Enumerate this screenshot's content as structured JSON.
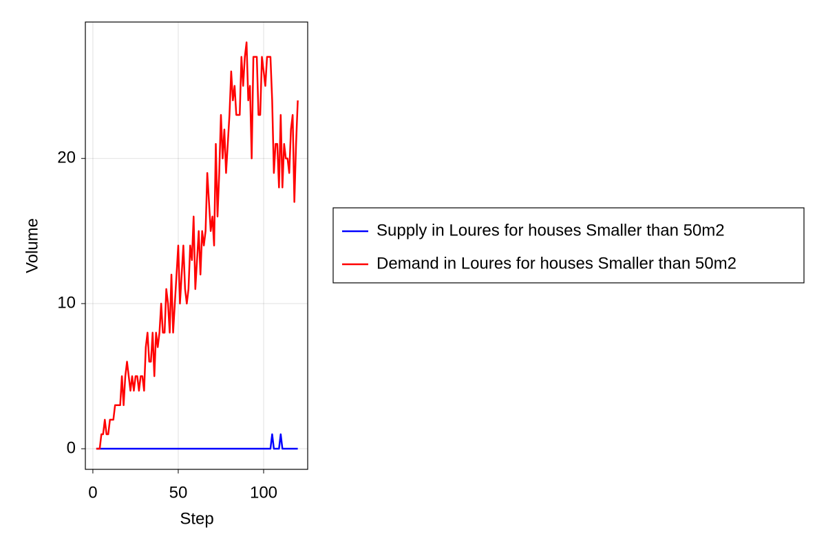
{
  "chart_data": {
    "type": "line",
    "xlabel": "Step",
    "ylabel": "Volume",
    "x": [
      2,
      3,
      4,
      5,
      6,
      7,
      8,
      9,
      10,
      11,
      12,
      13,
      14,
      15,
      16,
      17,
      18,
      19,
      20,
      21,
      22,
      23,
      24,
      25,
      26,
      27,
      28,
      29,
      30,
      31,
      32,
      33,
      34,
      35,
      36,
      37,
      38,
      39,
      40,
      41,
      42,
      43,
      44,
      45,
      46,
      47,
      48,
      49,
      50,
      51,
      52,
      53,
      54,
      55,
      56,
      57,
      58,
      59,
      60,
      61,
      62,
      63,
      64,
      65,
      66,
      67,
      68,
      69,
      70,
      71,
      72,
      73,
      74,
      75,
      76,
      77,
      78,
      79,
      80,
      81,
      82,
      83,
      84,
      85,
      86,
      87,
      88,
      89,
      90,
      91,
      92,
      93,
      94,
      95,
      96,
      97,
      98,
      99,
      100,
      101,
      102,
      103,
      104,
      105,
      106,
      107,
      108,
      109,
      110,
      111,
      112,
      113,
      114,
      115,
      116,
      117,
      118,
      119,
      120
    ],
    "series": [
      {
        "name": "Supply in Loures for houses Smaller than 50m2",
        "color": "#0000ff",
        "values": [
          0,
          0,
          0,
          0,
          0,
          0,
          0,
          0,
          0,
          0,
          0,
          0,
          0,
          0,
          0,
          0,
          0,
          0,
          0,
          0,
          0,
          0,
          0,
          0,
          0,
          0,
          0,
          0,
          0,
          0,
          0,
          0,
          0,
          0,
          0,
          0,
          0,
          0,
          0,
          0,
          0,
          0,
          0,
          0,
          0,
          0,
          0,
          0,
          0,
          0,
          0,
          0,
          0,
          0,
          0,
          0,
          0,
          0,
          0,
          0,
          0,
          0,
          0,
          0,
          0,
          0,
          0,
          0,
          0,
          0,
          0,
          0,
          0,
          0,
          0,
          0,
          0,
          0,
          0,
          0,
          0,
          0,
          0,
          0,
          0,
          0,
          0,
          0,
          0,
          0,
          0,
          0,
          0,
          0,
          0,
          0,
          0,
          0,
          0,
          0,
          0,
          0,
          0,
          1,
          0,
          0,
          0,
          0,
          1,
          0,
          0,
          0,
          0,
          0,
          0,
          0,
          0,
          0,
          0
        ]
      },
      {
        "name": "Demand in Loures for houses Smaller than 50m2",
        "color": "#ff0000",
        "values": [
          0,
          0,
          0,
          1,
          1,
          2,
          1,
          1,
          2,
          2,
          2,
          3,
          3,
          3,
          3,
          5,
          3,
          5,
          6,
          5,
          4,
          5,
          4,
          5,
          5,
          4,
          5,
          5,
          4,
          7,
          8,
          6,
          6,
          8,
          5,
          8,
          7,
          8,
          10,
          8,
          8,
          11,
          10,
          8,
          12,
          8,
          10,
          12,
          14,
          10,
          12,
          14,
          11,
          10,
          11,
          14,
          13,
          16,
          11,
          13,
          15,
          12,
          15,
          14,
          15,
          19,
          17,
          15,
          16,
          14,
          21,
          16,
          19,
          23,
          20,
          22,
          19,
          21,
          23,
          26,
          24,
          25,
          23,
          23,
          23,
          27,
          25,
          27,
          28,
          24,
          25,
          20,
          27,
          27,
          27,
          23,
          23,
          27,
          26,
          25,
          27,
          27,
          27,
          24,
          19,
          21,
          21,
          18,
          23,
          18,
          21,
          20,
          20,
          19,
          22,
          23,
          17,
          21,
          24
        ]
      }
    ],
    "xlim": [
      -4.4,
      125.8
    ],
    "xticks": [
      0,
      50,
      100
    ],
    "ylim": [
      -1.42,
      29.4
    ],
    "yticks": [
      0,
      10,
      20
    ],
    "grid": true,
    "legend": "right"
  }
}
